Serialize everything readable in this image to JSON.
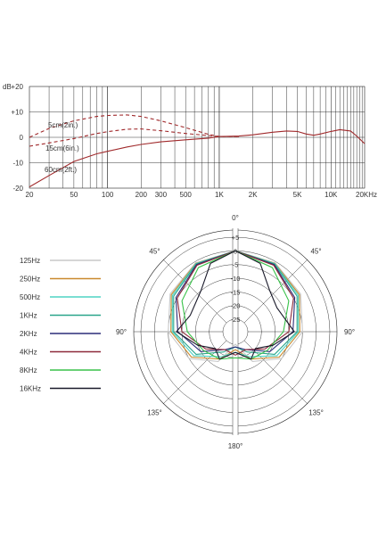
{
  "chart_data": [
    {
      "type": "line",
      "subtype": "frequency-response",
      "title": "",
      "xlabel": "",
      "ylabel": "dB",
      "x_scale": "log",
      "xlim": [
        20,
        20000
      ],
      "ylim": [
        -20,
        20
      ],
      "grid": true,
      "x_ticks": [
        {
          "value": 20,
          "label": "20"
        },
        {
          "value": 50,
          "label": "50"
        },
        {
          "value": 100,
          "label": "100"
        },
        {
          "value": 200,
          "label": "200"
        },
        {
          "value": 300,
          "label": "300"
        },
        {
          "value": 500,
          "label": "500"
        },
        {
          "value": 1000,
          "label": "1K"
        },
        {
          "value": 2000,
          "label": "2K"
        },
        {
          "value": 5000,
          "label": "5K"
        },
        {
          "value": 10000,
          "label": "10K"
        },
        {
          "value": 20000,
          "label": "20KHz"
        }
      ],
      "y_ticks": [
        {
          "value": 20,
          "label": "+20"
        },
        {
          "value": 10,
          "label": "+10"
        },
        {
          "value": 0,
          "label": "0"
        },
        {
          "value": -10,
          "label": "-10"
        },
        {
          "value": -20,
          "label": "-20"
        }
      ],
      "unit_label": "dB",
      "series": [
        {
          "name": "5cm(2in.)",
          "style": "dashed",
          "color": "#a0292b",
          "x": [
            20,
            30,
            50,
            80,
            100,
            150,
            200,
            300,
            500,
            800,
            1000,
            1500
          ],
          "y": [
            0,
            3.5,
            6.5,
            8.2,
            8.6,
            8.8,
            8.2,
            6.5,
            3.8,
            1.2,
            0.3,
            0.3
          ]
        },
        {
          "name": "15cm(6in.)",
          "style": "dashed",
          "color": "#a0292b",
          "x": [
            20,
            30,
            50,
            80,
            100,
            150,
            200,
            300,
            500,
            800,
            1000,
            1500
          ],
          "y": [
            -3.5,
            -2.2,
            -0.5,
            1.5,
            2.2,
            3.2,
            3.3,
            2.6,
            1.5,
            0.7,
            0.3,
            0.3
          ]
        },
        {
          "name": "60cm(2ft.)",
          "style": "solid",
          "color": "#a0292b",
          "x": [
            20,
            30,
            50,
            80,
            100,
            150,
            200,
            300,
            500,
            800,
            1000,
            1500,
            2000,
            3000,
            4000,
            5000,
            6000,
            7000,
            8000,
            10000,
            12000,
            15000,
            17000,
            20000
          ],
          "y": [
            -19.5,
            -15,
            -9.5,
            -6.5,
            -5.5,
            -3.8,
            -2.8,
            -1.8,
            -1,
            -0.3,
            0.3,
            0.5,
            1,
            2,
            2.5,
            2.3,
            1.3,
            0.8,
            1.3,
            2.3,
            3,
            2.5,
            0.5,
            -2.5
          ]
        }
      ]
    },
    {
      "type": "polar",
      "subtype": "polar-pattern",
      "title": "",
      "radial_unit": "dB",
      "rlim": [
        -25,
        5
      ],
      "r_ticks": [
        "+5",
        "0",
        "-5",
        "-10",
        "-15",
        "-20",
        "-25"
      ],
      "angle_labels": [
        {
          "deg": 0,
          "label": "0°"
        },
        {
          "deg": 45,
          "label": "45°"
        },
        {
          "deg": 90,
          "label": "90°"
        },
        {
          "deg": 135,
          "label": "135°"
        },
        {
          "deg": 180,
          "label": "180°"
        },
        {
          "deg": 225,
          "label": "135°"
        },
        {
          "deg": 270,
          "label": "90°"
        },
        {
          "deg": 315,
          "label": "45°"
        }
      ],
      "legend_position": "left",
      "series": [
        {
          "name": "125Hz",
          "color": "#c8c8c8",
          "angles": [
            0,
            30,
            60,
            90,
            120,
            150,
            180,
            210,
            240,
            270,
            300,
            330,
            360
          ],
          "values": [
            0,
            -0.5,
            -2,
            -5,
            -10,
            -17,
            -25,
            -17,
            -10,
            -5,
            -2,
            -0.5,
            0
          ]
        },
        {
          "name": "250Hz",
          "color": "#c9892d",
          "angles": [
            0,
            30,
            60,
            90,
            120,
            150,
            180,
            210,
            240,
            270,
            300,
            330,
            360
          ],
          "values": [
            0,
            -0.7,
            -2.5,
            -6,
            -11,
            -18,
            -23,
            -18,
            -11,
            -6,
            -2.5,
            -0.7,
            0
          ]
        },
        {
          "name": "500Hz",
          "color": "#4fd3c4",
          "angles": [
            0,
            30,
            60,
            90,
            120,
            150,
            180,
            210,
            240,
            270,
            300,
            330,
            360
          ],
          "values": [
            0,
            -0.8,
            -3,
            -6.5,
            -12,
            -19,
            -22,
            -19,
            -12,
            -6.5,
            -3,
            -0.8,
            0
          ]
        },
        {
          "name": "1KHz",
          "color": "#2aa58a",
          "angles": [
            0,
            30,
            60,
            90,
            120,
            150,
            180,
            210,
            240,
            270,
            300,
            330,
            360
          ],
          "values": [
            0,
            -1,
            -3.5,
            -7,
            -13,
            -21,
            -24,
            -21,
            -13,
            -7,
            -3.5,
            -1,
            0
          ]
        },
        {
          "name": "2KHz",
          "color": "#2b2d78",
          "angles": [
            0,
            30,
            60,
            90,
            120,
            150,
            180,
            210,
            240,
            270,
            300,
            330,
            360
          ],
          "values": [
            0,
            -1.2,
            -4.5,
            -8.5,
            -15,
            -22,
            -24,
            -22,
            -15,
            -8.5,
            -4.5,
            -1.2,
            0
          ]
        },
        {
          "name": "4KHz",
          "color": "#8d2a3a",
          "angles": [
            0,
            30,
            60,
            90,
            120,
            150,
            180,
            210,
            240,
            270,
            300,
            330,
            360
          ],
          "values": [
            0,
            -1.5,
            -5,
            -10,
            -17,
            -22,
            -21,
            -22,
            -17,
            -10,
            -5,
            -1.5,
            0
          ]
        },
        {
          "name": "8KHz",
          "color": "#39c24a",
          "angles": [
            0,
            30,
            60,
            90,
            120,
            150,
            180,
            210,
            240,
            270,
            300,
            330,
            360
          ],
          "values": [
            0,
            -2.5,
            -7,
            -12,
            -16,
            -18,
            -20,
            -18,
            -16,
            -12,
            -7,
            -2.5,
            0
          ]
        },
        {
          "name": "16KHz",
          "color": "#1a1a2a",
          "angles": [
            0,
            20,
            40,
            60,
            90,
            110,
            130,
            150,
            180,
            210,
            230,
            250,
            270,
            290,
            320,
            340,
            360
          ],
          "values": [
            0,
            -3,
            -10,
            -12,
            -8,
            -15,
            -20,
            -18,
            -22,
            -18,
            -20,
            -15,
            -8,
            -12,
            -10,
            -3,
            0
          ]
        }
      ]
    }
  ]
}
